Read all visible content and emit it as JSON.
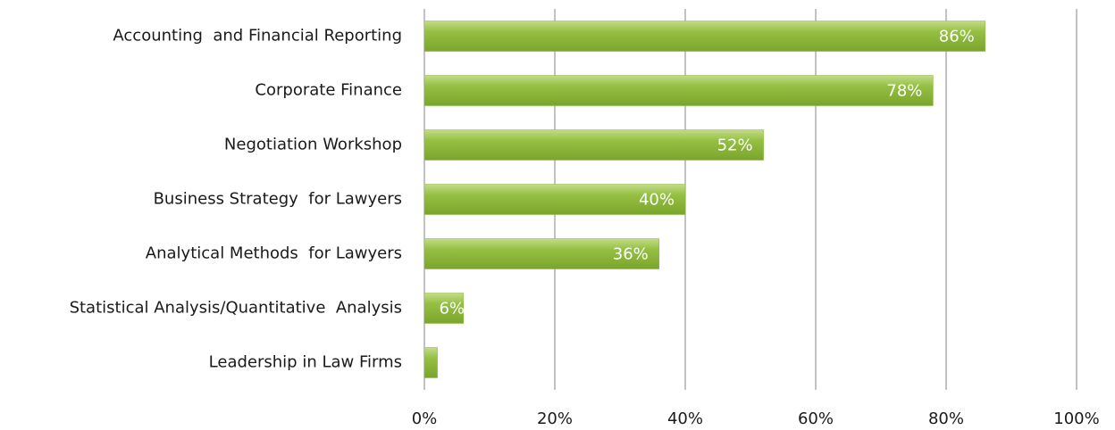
{
  "chart_data": {
    "type": "bar",
    "orientation": "horizontal",
    "categories": [
      "Accounting  and Financial Reporting",
      "Corporate Finance",
      "Negotiation Workshop",
      "Business Strategy  for Lawyers",
      "Analytical Methods  for Lawyers",
      "Statistical Analysis/Quantitative  Analysis",
      "Leadership in Law Firms"
    ],
    "values": [
      86,
      78,
      52,
      40,
      36,
      6,
      2
    ],
    "value_labels": [
      "86%",
      "78%",
      "52%",
      "40%",
      "36%",
      "6%",
      null
    ],
    "color": "#8cb83a",
    "xlim": [
      0,
      100
    ],
    "xticks": [
      {
        "value": 0,
        "label": "0%"
      },
      {
        "value": 20,
        "label": "20%"
      },
      {
        "value": 40,
        "label": "40%"
      },
      {
        "value": 60,
        "label": "60%"
      },
      {
        "value": 80,
        "label": "80%"
      },
      {
        "value": 100,
        "label": "100%"
      }
    ],
    "grid": true
  }
}
